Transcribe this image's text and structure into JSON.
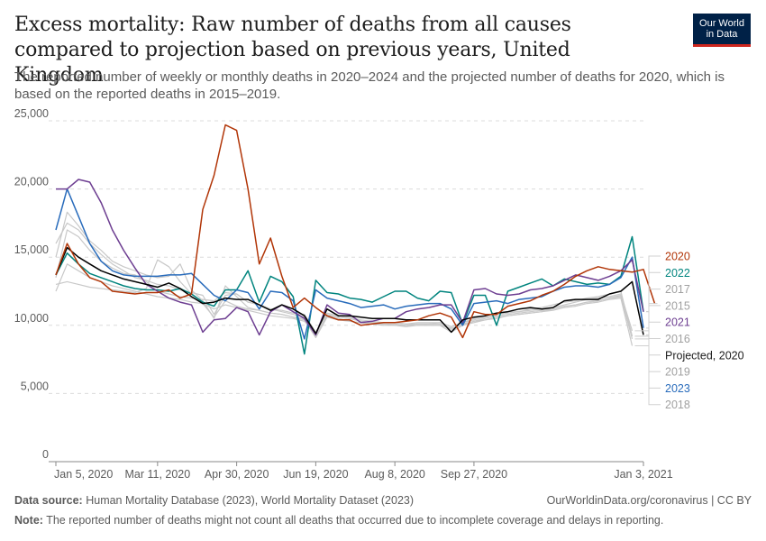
{
  "header": {
    "title": "Excess mortality: Raw number of deaths from all causes compared to projection based on previous years, United Kingdom",
    "subtitle": "The reported number of weekly or monthly deaths in 2020–2024 and the projected number of deaths for 2020, which is based on the reported deaths in 2015–2019.",
    "logo_line1": "Our World",
    "logo_line2": "in Data"
  },
  "footer": {
    "source_label": "Data source:",
    "source_text": "Human Mortality Database (2023), World Mortality Dataset (2023)",
    "url_text": "OurWorldinData.org/coronavirus | CC BY",
    "note_label": "Note:",
    "note_text": "The reported number of deaths might not count all deaths that occurred due to incomplete coverage and delays in reporting."
  },
  "chart_data": {
    "type": "line",
    "x_tick_labels": [
      "Jan 5, 2020",
      "Mar 11, 2020",
      "Apr 30, 2020",
      "Jun 19, 2020",
      "Aug 8, 2020",
      "Sep 27, 2020",
      "Jan 3, 2021"
    ],
    "x_tick_weeks": [
      1,
      10,
      17,
      24,
      31,
      38,
      53
    ],
    "y_ticks": [
      0,
      5000,
      10000,
      15000,
      20000,
      25000
    ],
    "y_tick_labels": [
      "0",
      "5,000",
      "10,000",
      "15,000",
      "20,000",
      "25,000"
    ],
    "ylim": [
      0,
      25000
    ],
    "xlim_weeks": [
      1,
      53
    ],
    "grid": "horizontal dashed",
    "legend_placement": "right",
    "series": [
      {
        "name": "2015",
        "color": "#c8c8c8",
        "values": [
          13500,
          17000,
          16500,
          15500,
          14700,
          14200,
          13800,
          13700,
          13200,
          12500,
          12300,
          12100,
          12000,
          11900,
          11800,
          12400,
          12300,
          11700,
          11500,
          11200,
          11000,
          10800,
          10600,
          9200,
          10800,
          10600,
          10500,
          10300,
          10200,
          10200,
          10200,
          10100,
          10100,
          10100,
          10200,
          9900,
          10200,
          10500,
          10700,
          10900,
          11000,
          11000,
          11200,
          11300,
          11500,
          11700,
          11800,
          12000,
          12100,
          12300,
          12500,
          9200,
          null
        ]
      },
      {
        "name": "2016",
        "color": "#c8c8c8",
        "values": [
          13000,
          13200,
          13000,
          12800,
          12700,
          12600,
          12500,
          12400,
          12700,
          14800,
          14300,
          13200,
          12300,
          11600,
          10600,
          11800,
          11400,
          11200,
          11100,
          10900,
          10800,
          10600,
          10400,
          9100,
          10600,
          10500,
          10300,
          10200,
          10100,
          10000,
          10000,
          9900,
          10000,
          10000,
          10000,
          9800,
          10000,
          10300,
          10400,
          10600,
          10700,
          10800,
          10900,
          11000,
          11200,
          11400,
          11500,
          11700,
          11800,
          12000,
          12200,
          9000,
          null
        ]
      },
      {
        "name": "2017",
        "color": "#c8c8c8",
        "values": [
          16000,
          17500,
          17000,
          16000,
          15200,
          14500,
          14000,
          13500,
          13300,
          13000,
          12900,
          12600,
          12400,
          12200,
          10800,
          12200,
          12300,
          11700,
          11500,
          11200,
          11100,
          10900,
          10800,
          9500,
          10900,
          10700,
          10600,
          10400,
          10300,
          10200,
          10200,
          10100,
          10200,
          10200,
          10200,
          9900,
          10200,
          10400,
          10600,
          10800,
          10900,
          11000,
          11100,
          11200,
          11300,
          11500,
          11700,
          11900,
          12000,
          12100,
          12300,
          9600,
          null
        ]
      },
      {
        "name": "2018",
        "color": "#c8c8c8",
        "values": [
          15000,
          18300,
          17300,
          16200,
          15500,
          14700,
          14300,
          14000,
          13700,
          13500,
          13600,
          14500,
          12600,
          11800,
          10500,
          12900,
          12100,
          11300,
          11100,
          10900,
          10800,
          10600,
          10500,
          9300,
          10700,
          10600,
          10500,
          10300,
          10200,
          10100,
          10100,
          10000,
          10100,
          10100,
          10100,
          9700,
          10100,
          10300,
          10500,
          10700,
          10800,
          10900,
          11000,
          11100,
          11200,
          11400,
          11500,
          11700,
          11800,
          12000,
          12100,
          9200,
          null
        ]
      },
      {
        "name": "2019",
        "color": "#c8c8c8",
        "values": [
          12500,
          14500,
          14000,
          13500,
          13200,
          12900,
          12700,
          12500,
          12300,
          12100,
          12000,
          11900,
          11700,
          11600,
          11200,
          11500,
          11300,
          11100,
          10900,
          10700,
          10600,
          10500,
          10300,
          9300,
          10600,
          10400,
          10300,
          10200,
          10100,
          10100,
          10000,
          10000,
          10000,
          10000,
          10000,
          9500,
          10000,
          10200,
          10400,
          10500,
          10700,
          10800,
          10900,
          11000,
          11100,
          11300,
          11400,
          11600,
          11700,
          11900,
          12000,
          8500,
          null
        ]
      },
      {
        "name": "Projected, 2020",
        "color": "#000000",
        "values": [
          13700,
          15700,
          15000,
          14500,
          14000,
          13700,
          13400,
          13200,
          13000,
          12800,
          13100,
          12700,
          12100,
          11600,
          11700,
          12000,
          11900,
          11900,
          11500,
          11100,
          11500,
          11200,
          10700,
          9400,
          11200,
          10700,
          10700,
          10600,
          10500,
          10500,
          10500,
          10400,
          10400,
          10400,
          10400,
          9500,
          10400,
          10600,
          10700,
          10900,
          11000,
          11200,
          11300,
          11200,
          11300,
          11800,
          11900,
          11900,
          11900,
          12300,
          12500,
          13200,
          9300
        ]
      },
      {
        "name": "2020",
        "color": "#b13507",
        "values": [
          13700,
          16000,
          14500,
          13500,
          13200,
          12500,
          12400,
          12300,
          12400,
          12400,
          12600,
          12000,
          12300,
          18500,
          21000,
          24700,
          24300,
          20000,
          14500,
          16400,
          13600,
          11300,
          12000,
          11300,
          10700,
          10400,
          10400,
          10000,
          10100,
          10200,
          10200,
          10300,
          10400,
          10700,
          10900,
          10600,
          9100,
          11000,
          10800,
          10800,
          11400,
          11600,
          11800,
          12200,
          12500,
          13000,
          13600,
          14000,
          14300,
          14100,
          14000,
          13900,
          14100,
          11600
        ]
      },
      {
        "name": "2021",
        "color": "#6d3e91",
        "values": [
          20000,
          20000,
          20700,
          20500,
          19000,
          17000,
          15500,
          14200,
          13000,
          12500,
          12000,
          11700,
          11500,
          9500,
          10400,
          10500,
          11300,
          11000,
          9300,
          11000,
          11500,
          11000,
          10500,
          9300,
          11500,
          10900,
          10800,
          10200,
          10300,
          10500,
          10500,
          11000,
          11200,
          11300,
          11500,
          11500,
          10200,
          12600,
          12700,
          12300,
          12200,
          12300,
          12600,
          12700,
          12900,
          13300,
          13700,
          13500,
          13300,
          13600,
          14000,
          14800,
          11000
        ]
      },
      {
        "name": "2022",
        "color": "#00847e",
        "values": [
          13700,
          15300,
          14500,
          13800,
          13500,
          13200,
          12900,
          12700,
          12600,
          12600,
          12500,
          12700,
          12300,
          11700,
          11400,
          12600,
          12600,
          14000,
          11700,
          13600,
          13200,
          12100,
          7900,
          13300,
          12400,
          12300,
          12000,
          11900,
          11700,
          12100,
          12500,
          12500,
          12000,
          11800,
          12500,
          12400,
          10100,
          12200,
          12200,
          10000,
          12500,
          12800,
          13100,
          13400,
          12900,
          13400,
          13200,
          13000,
          13100,
          13000,
          13600,
          16500,
          11000
        ]
      },
      {
        "name": "2023",
        "color": "#286bbb",
        "values": [
          17000,
          20000,
          18000,
          16000,
          14700,
          14000,
          13700,
          13600,
          13600,
          13600,
          13700,
          13700,
          13800,
          13000,
          12200,
          11800,
          12600,
          12400,
          11200,
          12500,
          12400,
          11800,
          9000,
          12600,
          12000,
          11800,
          11600,
          11300,
          11400,
          11500,
          11200,
          11400,
          11500,
          11600,
          11600,
          11200,
          10000,
          11600,
          11700,
          11800,
          11600,
          11900,
          12000,
          12100,
          12500,
          12800,
          12900,
          12900,
          12800,
          13000,
          13500,
          15000,
          9800
        ]
      }
    ]
  }
}
